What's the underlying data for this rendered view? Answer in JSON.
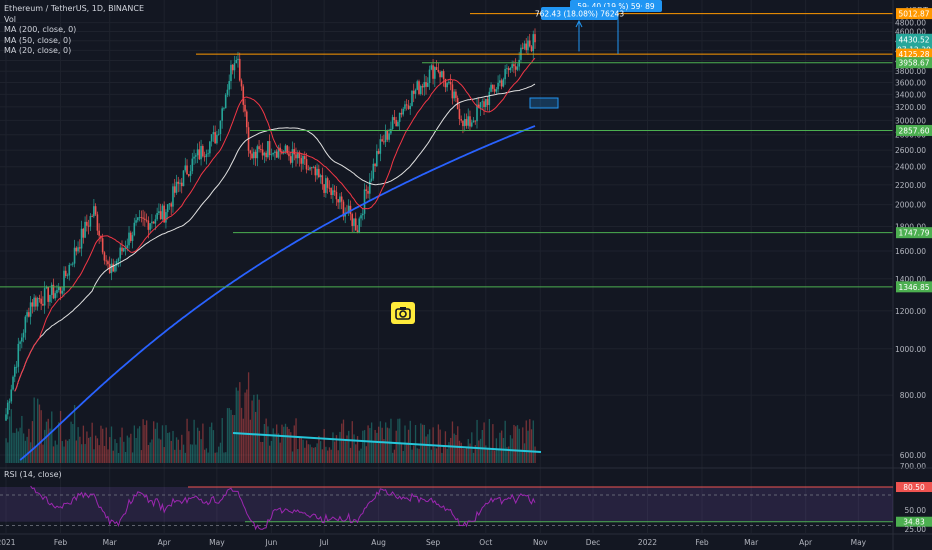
{
  "legend": {
    "symbol": "Ethereum / TetherUS, 1D, BINANCE",
    "vol": "Vol",
    "ma200": "MA (200, close, 0)",
    "ma50": "MA (50, close, 0)",
    "ma20": "MA (20, close, 0)",
    "rsi": "RSI (14, close)"
  },
  "currency": "USDT",
  "annotations": {
    "target_box": "762.43 (18.08%) 76243",
    "target_box_top": "59· 40 (19 %) 59· 89",
    "camera_icon": "camera-icon"
  },
  "colors": {
    "up": "#26a69a",
    "down": "#ef5350",
    "ma200": "#2962ff",
    "ma50": "#e0e0e0",
    "ma20": "#f23645",
    "rsi": "#9c27b0",
    "hline_green": "#4caf50",
    "hline_orange": "#ff9800",
    "trend_cyan": "#26c6da",
    "box_blue": "#2196f3"
  },
  "chart_data": {
    "type": "candlestick",
    "title": "Ethereum / TetherUS, 1D, BINANCE",
    "ylim": [
      580,
      5150
    ],
    "yticks": [
      600,
      800,
      1000,
      1200,
      1400,
      1600,
      1800,
      2000,
      2200,
      2400,
      2600,
      2800,
      3000,
      3200,
      3400,
      3600,
      3800,
      4000,
      4200,
      4400,
      4600,
      4800
    ],
    "xticks": [
      "2021",
      "Feb",
      "Mar",
      "Apr",
      "May",
      "Jun",
      "Jul",
      "Aug",
      "Sep",
      "Oct",
      "Nov",
      "Dec",
      "2022",
      "Feb",
      "Mar",
      "Apr",
      "May",
      "Jun"
    ],
    "price_tags": [
      {
        "label": "5012.87",
        "value": 5012.87,
        "color": "#ff9800"
      },
      {
        "label": "4430.52",
        "value": 4430.52,
        "color": "#26a69a"
      },
      {
        "label": "07:12:39",
        "value": 4330,
        "color": "#26a69a"
      },
      {
        "label": "4125.28",
        "value": 4125.28,
        "color": "#ff9800"
      },
      {
        "label": "3958.67",
        "value": 3958.67,
        "color": "#4caf50"
      },
      {
        "label": "2857.60",
        "value": 2857.6,
        "color": "#4caf50"
      },
      {
        "label": "1747.79",
        "value": 1747.79,
        "color": "#4caf50"
      },
      {
        "label": "1346.85",
        "value": 1346.85,
        "color": "#4caf50"
      }
    ],
    "horizontal_levels": [
      5012.87,
      4125.28,
      3958.67,
      2857.6,
      1747.79,
      1346.85
    ],
    "close_series": {
      "months": [
        "2021-01-01",
        "2021-01-15",
        "2021-02-01",
        "2021-02-20",
        "2021-03-01",
        "2021-03-15",
        "2021-04-01",
        "2021-04-15",
        "2021-05-01",
        "2021-05-12",
        "2021-05-20",
        "2021-06-01",
        "2021-06-15",
        "2021-07-01",
        "2021-07-20",
        "2021-08-01",
        "2021-08-15",
        "2021-09-03",
        "2021-09-20",
        "2021-10-01",
        "2021-10-15",
        "2021-10-29"
      ],
      "values": [
        730,
        1250,
        1330,
        1940,
        1420,
        1790,
        1920,
        2400,
        2800,
        4200,
        2500,
        2650,
        2500,
        2200,
        1800,
        2600,
        3200,
        3900,
        2900,
        3300,
        3850,
        4430
      ]
    },
    "rsi": {
      "upper": 80.5,
      "lower": 34.83,
      "mid": 50,
      "yticks": [
        50,
        25
      ]
    },
    "rsi_labels": [
      "80.50",
      "34.83"
    ],
    "volume_label": "Vol",
    "axis_labels": [
      "600.00",
      "700.00",
      "800.00",
      "1000.00",
      "1200.00",
      "1400.00",
      "1600.00",
      "1800.00",
      "2000.00",
      "2200.00",
      "2400.00",
      "2600.00",
      "2800.00",
      "3000.00",
      "3200.00",
      "3400.00",
      "3600.00",
      "3800.00",
      "4000.00",
      "4200.00",
      "4400.00",
      "4600.00",
      "4800.00"
    ],
    "rsi_axis_labels": [
      "50.00",
      "25.00"
    ]
  }
}
